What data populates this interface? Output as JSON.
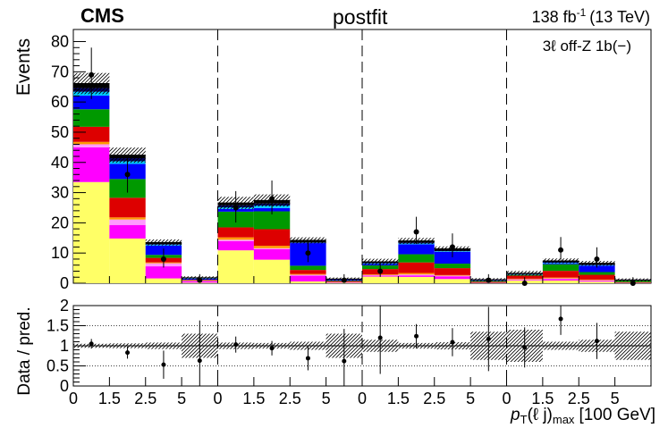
{
  "header": {
    "experiment": "CMS",
    "status": "postfit",
    "lumi_value": "138 fb",
    "lumi_exp": "-1",
    "energy": "(13 TeV)",
    "category": "3ℓ  off-Z 1b(−)"
  },
  "axes": {
    "top_ylabel": "Events",
    "bottom_ylabel": "Data / pred.",
    "xlabel_p": "p",
    "xlabel_T": "T",
    "xlabel_mid": "(ℓ j)",
    "xlabel_max": "max",
    "xlabel_unit": "[100 GeV]",
    "top_yticks": [
      "0",
      "10",
      "20",
      "30",
      "40",
      "50",
      "60",
      "70",
      "80"
    ],
    "bottom_yticks": [
      "0",
      "0.5",
      "1",
      "1.5",
      "2"
    ],
    "x_ticklabels": [
      "0",
      "1.5",
      "2.5",
      "5",
      "0",
      "1.5",
      "2.5",
      "5",
      "0",
      "1.5",
      "2.5",
      "5",
      "0",
      "1.5",
      "2.5",
      "5"
    ]
  },
  "chart_data": {
    "type": "bar",
    "stacked": true,
    "title": "postfit",
    "xlabel": "p_T(ℓ j)_max [100 GeV]",
    "ylabel": "Events",
    "ylim": [
      0,
      84
    ],
    "ratio_ylim": [
      0,
      2
    ],
    "categories": [
      "bin1",
      "bin2",
      "bin3",
      "bin4",
      "bin5",
      "bin6",
      "bin7",
      "bin8",
      "bin9",
      "bin10",
      "bin11",
      "bin12",
      "bin13",
      "bin14",
      "bin15",
      "bin16"
    ],
    "groups": 4,
    "colors": {
      "yellow": "#ffff66",
      "magenta": "#ff00ff",
      "pink": "#ff99ff",
      "orange": "#ff9900",
      "red": "#dd0000",
      "green": "#009900",
      "blue": "#0000ff",
      "cyan": "#00ccff",
      "navy": "#000066",
      "black": "#000000"
    },
    "series": [
      {
        "color": "#ffff66",
        "values": [
          33.5,
          14.8,
          1.6,
          0.2,
          10.9,
          7.8,
          0.6,
          0.2,
          2.2,
          2.1,
          1.4,
          0.1,
          0.9,
          0.9,
          0.5,
          0.1
        ]
      },
      {
        "color": "#ff00ff",
        "values": [
          11.5,
          4.5,
          4.0,
          0.5,
          3.0,
          3.5,
          1.9,
          0.2,
          0.3,
          0.5,
          0.9,
          0.1,
          0.2,
          0.5,
          0.3,
          0.1
        ]
      },
      {
        "color": "#ff99ff",
        "values": [
          1.0,
          1.8,
          1.0,
          0.1,
          0.5,
          0.3,
          0.3,
          0.0,
          0.2,
          0.3,
          0.2,
          0.0,
          0.2,
          0.2,
          0.2,
          0.0
        ]
      },
      {
        "color": "#ff9900",
        "values": [
          0.8,
          0.7,
          0.3,
          0.1,
          0.8,
          0.8,
          0.3,
          0.0,
          0.2,
          0.5,
          0.2,
          0.0,
          0.2,
          0.3,
          0.2,
          0.0
        ]
      },
      {
        "color": "#dd0000",
        "values": [
          5.0,
          6.5,
          1.5,
          0.2,
          3.3,
          5.5,
          1.3,
          0.3,
          1.8,
          3.5,
          2.3,
          0.3,
          1.0,
          2.2,
          1.6,
          0.2
        ]
      },
      {
        "color": "#009900",
        "values": [
          5.8,
          6.2,
          1.0,
          0.1,
          5.2,
          5.9,
          1.4,
          0.2,
          1.2,
          2.7,
          1.5,
          0.3,
          0.3,
          2.2,
          0.9,
          0.5
        ]
      },
      {
        "color": "#0000ff",
        "values": [
          4.5,
          5.0,
          3.1,
          0.3,
          0.9,
          1.1,
          7.5,
          0.3,
          0.5,
          3.3,
          3.9,
          0.2,
          0.1,
          0.3,
          2.1,
          0.1
        ]
      },
      {
        "color": "#00ccff",
        "values": [
          1.3,
          0.9,
          0.3,
          0.1,
          0.5,
          0.8,
          0.1,
          0.0,
          0.2,
          0.3,
          0.2,
          0.0,
          0.1,
          0.2,
          0.2,
          0.0
        ]
      },
      {
        "color": "#000066",
        "values": [
          1.2,
          1.0,
          0.2,
          0.1,
          0.7,
          0.7,
          0.2,
          0.1,
          0.2,
          0.3,
          0.2,
          0.1,
          0.1,
          0.3,
          0.2,
          0.0
        ]
      },
      {
        "color": "#000000",
        "values": [
          1.5,
          1.0,
          0.5,
          0.1,
          0.8,
          1.0,
          0.6,
          0.1,
          0.3,
          0.5,
          0.6,
          0.1,
          0.2,
          0.3,
          0.4,
          0.1
        ]
      }
    ],
    "uncertainty": [
      3.5,
      2.5,
      1.0,
      0.5,
      2.0,
      2.0,
      1.0,
      0.5,
      1.0,
      1.0,
      0.8,
      0.5,
      0.8,
      0.8,
      0.8,
      0.5
    ],
    "data": {
      "values": [
        69,
        36,
        8,
        1,
        25,
        28,
        10,
        1,
        4,
        17,
        12,
        1,
        0,
        11,
        8,
        0
      ],
      "err_up": [
        9,
        6.5,
        3.5,
        2,
        5.5,
        6,
        4,
        2,
        3,
        5,
        4.5,
        2,
        2,
        4.3,
        3.9,
        2
      ],
      "err_down": [
        8,
        6,
        2.8,
        0.8,
        4.9,
        5.2,
        3,
        0.8,
        1.9,
        4,
        3.4,
        0.8,
        0,
        3.2,
        2.8,
        0
      ]
    },
    "ratio": {
      "values": [
        1.05,
        0.83,
        0.53,
        0.63,
        1.03,
        0.94,
        0.69,
        0.62,
        1.2,
        1.24,
        1.09,
        1.17,
        0.96,
        1.67,
        1.12,
        null
      ],
      "err": [
        0.12,
        0.15,
        0.35,
        1.0,
        0.2,
        0.18,
        0.3,
        0.8,
        0.9,
        0.3,
        0.35,
        0.8,
        0.5,
        0.4,
        0.45,
        0
      ],
      "unc_band": [
        0.05,
        0.06,
        0.08,
        0.3,
        0.08,
        0.07,
        0.1,
        0.3,
        0.15,
        0.07,
        0.09,
        0.35,
        0.4,
        0.1,
        0.15,
        0.35
      ]
    }
  }
}
